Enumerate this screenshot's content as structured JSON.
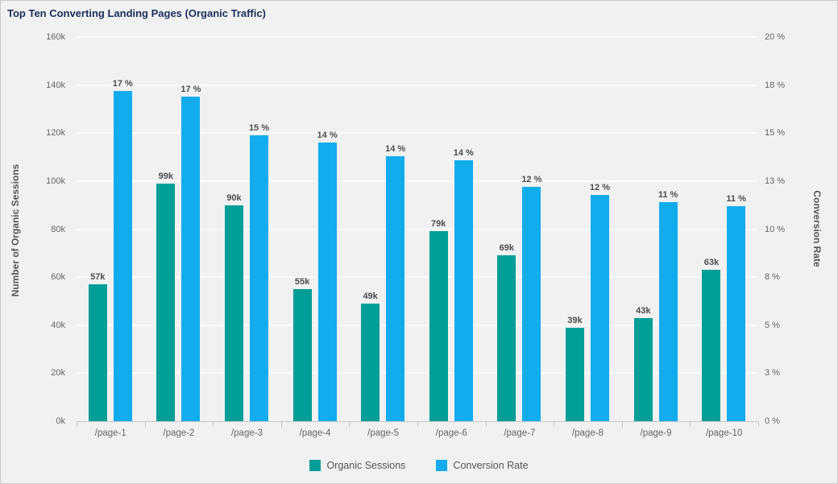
{
  "chart_data": {
    "type": "bar",
    "title": "Top Ten Converting Landing Pages (Organic Traffic)",
    "categories": [
      "/page-1",
      "/page-2",
      "/page-3",
      "/page-4",
      "/page-5",
      "/page-6",
      "/page-7",
      "/page-8",
      "/page-9",
      "/page-10"
    ],
    "series": [
      {
        "name": "Organic Sessions",
        "axis": "left",
        "color": "#009E98",
        "values": [
          57,
          99,
          90,
          55,
          49,
          79,
          69,
          39,
          43,
          63
        ],
        "value_unit": "k",
        "value_labels": [
          "57k",
          "99k",
          "90k",
          "55k",
          "49k",
          "79k",
          "69k",
          "39k",
          "43k",
          "63k"
        ]
      },
      {
        "name": "Conversion Rate",
        "axis": "right",
        "color": "#12ACED",
        "values": [
          17.2,
          16.9,
          14.9,
          14.5,
          13.8,
          13.6,
          12.2,
          11.8,
          11.4,
          11.2
        ],
        "value_unit": "%",
        "value_labels": [
          "17 %",
          "17 %",
          "15 %",
          "14 %",
          "14 %",
          "14 %",
          "12 %",
          "12 %",
          "11 %",
          "11 %"
        ]
      }
    ],
    "left_axis": {
      "label": "Number of Organic Sessions",
      "min": 0,
      "max": 160,
      "tick_labels_top_to_bottom": [
        "160k",
        "140k",
        "120k",
        "100k",
        "80k",
        "60k",
        "40k",
        "20k",
        "0k"
      ]
    },
    "right_axis": {
      "label": "Conversion Rate",
      "min": 0,
      "max": 20,
      "tick_labels_top_to_bottom": [
        "20 %",
        "18 %",
        "15 %",
        "13 %",
        "10 %",
        "8 %",
        "5 %",
        "3 %",
        "0 %"
      ]
    },
    "legend": {
      "position": "bottom",
      "entries": [
        "Organic Sessions",
        "Conversion Rate"
      ]
    },
    "grid": "horizontal",
    "colors": {
      "background": "#f1f1f1",
      "gridline": "#fafafa",
      "axis_line": "#c6c6c6",
      "tick_text": "#666666",
      "data_label_text": "#4d4d4d",
      "title_text": "#1a2e5a"
    }
  }
}
